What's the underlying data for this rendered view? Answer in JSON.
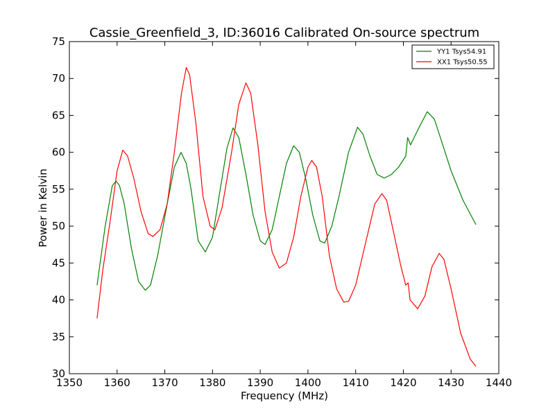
{
  "chart_data": {
    "type": "line",
    "title": "Cassie_Greenfield_3, ID:36016 Calibrated On-source spectrum",
    "xlabel": "Frequency (MHz)",
    "ylabel": "Power in Kelvin",
    "xlim": [
      1350,
      1440
    ],
    "ylim": [
      30,
      75
    ],
    "xticks": [
      1350,
      1360,
      1370,
      1380,
      1390,
      1400,
      1410,
      1420,
      1430,
      1440
    ],
    "yticks": [
      30,
      35,
      40,
      45,
      50,
      55,
      60,
      65,
      70,
      75
    ],
    "grid": false,
    "legend_position": "top-right",
    "series": [
      {
        "name": "YY1 Tsys54.91",
        "color": "#008000",
        "points": [
          [
            1355.8,
            42.0
          ],
          [
            1357.5,
            50.0
          ],
          [
            1359.0,
            55.5
          ],
          [
            1359.8,
            56.1
          ],
          [
            1360.5,
            55.5
          ],
          [
            1361.5,
            53.0
          ],
          [
            1363.0,
            47.0
          ],
          [
            1364.5,
            42.5
          ],
          [
            1365.9,
            41.3
          ],
          [
            1367.0,
            42.0
          ],
          [
            1368.5,
            46.0
          ],
          [
            1370.5,
            53.0
          ],
          [
            1372.0,
            58.0
          ],
          [
            1373.4,
            60.0
          ],
          [
            1374.5,
            58.5
          ],
          [
            1375.5,
            55.0
          ],
          [
            1377.0,
            48.0
          ],
          [
            1378.5,
            46.5
          ],
          [
            1380.0,
            48.5
          ],
          [
            1381.5,
            54.5
          ],
          [
            1383.0,
            60.5
          ],
          [
            1384.3,
            63.3
          ],
          [
            1385.5,
            62.0
          ],
          [
            1387.0,
            57.0
          ],
          [
            1388.5,
            51.5
          ],
          [
            1390.0,
            48.0
          ],
          [
            1391.0,
            47.5
          ],
          [
            1392.5,
            49.5
          ],
          [
            1394.0,
            54.0
          ],
          [
            1395.5,
            58.5
          ],
          [
            1397.0,
            60.9
          ],
          [
            1398.2,
            60.0
          ],
          [
            1399.5,
            56.5
          ],
          [
            1401.0,
            51.5
          ],
          [
            1402.5,
            48.0
          ],
          [
            1403.5,
            47.7
          ],
          [
            1405.0,
            50.0
          ],
          [
            1406.5,
            54.0
          ],
          [
            1408.5,
            60.0
          ],
          [
            1410.4,
            63.4
          ],
          [
            1411.5,
            62.5
          ],
          [
            1413.0,
            59.5
          ],
          [
            1414.5,
            57.0
          ],
          [
            1416.0,
            56.5
          ],
          [
            1417.5,
            57.0
          ],
          [
            1419.0,
            58.0
          ],
          [
            1420.5,
            59.5
          ],
          [
            1420.9,
            62.0
          ],
          [
            1421.5,
            61.0
          ],
          [
            1423.0,
            63.0
          ],
          [
            1425.0,
            65.5
          ],
          [
            1426.5,
            64.5
          ],
          [
            1428.0,
            61.5
          ],
          [
            1430.0,
            57.5
          ],
          [
            1432.5,
            53.5
          ],
          [
            1435.2,
            50.2
          ]
        ]
      },
      {
        "name": "XX1 Tsys50.55",
        "color": "#ff0000",
        "points": [
          [
            1355.8,
            37.5
          ],
          [
            1357.0,
            44.0
          ],
          [
            1358.5,
            50.5
          ],
          [
            1360.0,
            57.5
          ],
          [
            1361.2,
            60.3
          ],
          [
            1362.2,
            59.5
          ],
          [
            1363.5,
            56.5
          ],
          [
            1365.0,
            52.0
          ],
          [
            1366.5,
            49.0
          ],
          [
            1367.5,
            48.6
          ],
          [
            1369.0,
            49.5
          ],
          [
            1370.5,
            53.0
          ],
          [
            1372.0,
            60.0
          ],
          [
            1373.5,
            68.0
          ],
          [
            1374.5,
            71.5
          ],
          [
            1375.2,
            70.5
          ],
          [
            1376.5,
            64.0
          ],
          [
            1378.0,
            54.0
          ],
          [
            1379.5,
            50.0
          ],
          [
            1380.5,
            49.5
          ],
          [
            1382.0,
            52.5
          ],
          [
            1384.0,
            60.0
          ],
          [
            1385.5,
            66.5
          ],
          [
            1387.0,
            69.4
          ],
          [
            1388.0,
            68.0
          ],
          [
            1389.5,
            61.0
          ],
          [
            1391.0,
            52.0
          ],
          [
            1392.5,
            46.5
          ],
          [
            1394.0,
            44.3
          ],
          [
            1395.5,
            45.0
          ],
          [
            1397.0,
            48.5
          ],
          [
            1398.5,
            54.0
          ],
          [
            1400.0,
            58.0
          ],
          [
            1400.8,
            58.9
          ],
          [
            1401.8,
            58.0
          ],
          [
            1403.0,
            54.0
          ],
          [
            1404.5,
            46.0
          ],
          [
            1406.0,
            41.5
          ],
          [
            1407.5,
            39.7
          ],
          [
            1408.5,
            39.8
          ],
          [
            1410.0,
            42.0
          ],
          [
            1412.0,
            47.5
          ],
          [
            1414.0,
            53.0
          ],
          [
            1415.5,
            54.4
          ],
          [
            1416.5,
            53.5
          ],
          [
            1418.0,
            49.0
          ],
          [
            1419.5,
            44.5
          ],
          [
            1420.5,
            42.0
          ],
          [
            1421.0,
            42.3
          ],
          [
            1421.4,
            40.0
          ],
          [
            1423.0,
            38.8
          ],
          [
            1424.5,
            40.5
          ],
          [
            1426.0,
            44.5
          ],
          [
            1427.5,
            46.3
          ],
          [
            1428.5,
            45.5
          ],
          [
            1430.0,
            41.5
          ],
          [
            1432.0,
            35.5
          ],
          [
            1434.0,
            32.0
          ],
          [
            1435.2,
            31.0
          ]
        ]
      }
    ]
  }
}
